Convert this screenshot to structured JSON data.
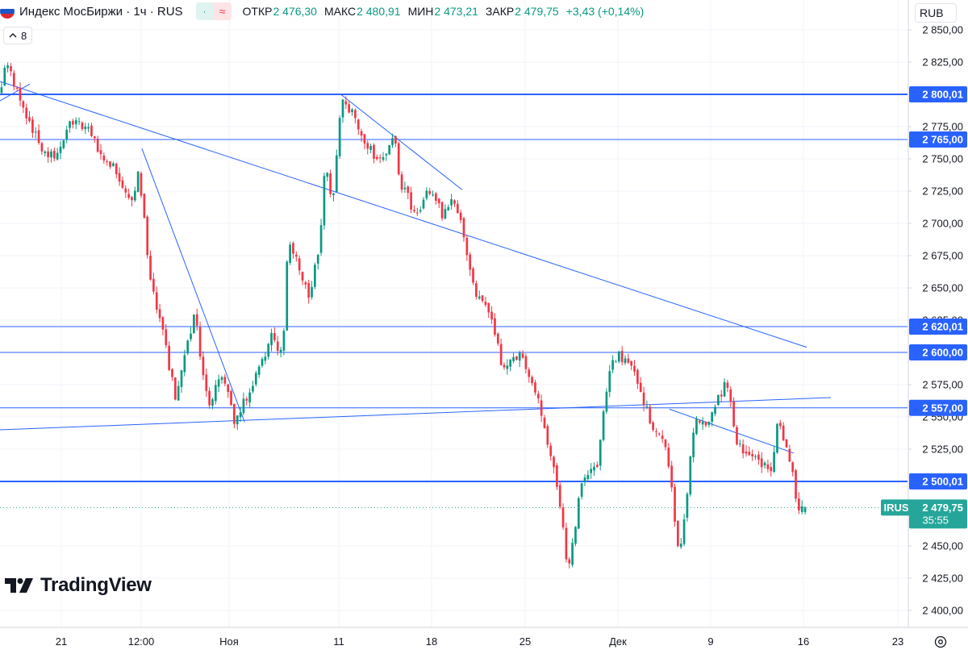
{
  "header": {
    "symbol_title": "Индекс МосБиржи · 1ч · RUS",
    "ohlc": [
      {
        "label": "ОТКР",
        "value": "2 476,30"
      },
      {
        "label": "МАКС",
        "value": "2 480,91"
      },
      {
        "label": "МИН",
        "value": "2 473,21"
      },
      {
        "label": "ЗАКР",
        "value": "2 479,75"
      }
    ],
    "change": "+3,43 (+0,14%)",
    "pill_icon_1": "·",
    "pill_icon_2": "≈"
  },
  "indicators_toggle": "8",
  "currency": "RUB",
  "brand": "TradingView",
  "colors": {
    "up": "#089981",
    "down": "#f23645",
    "level": "#2962ff",
    "trend": "#2962ff",
    "last_price": "#26a69a"
  },
  "chart_data": {
    "type": "candlestick",
    "ylim": [
      2390,
      2855
    ],
    "y_ticks": [
      {
        "v": 2850,
        "t": "2 850,00"
      },
      {
        "v": 2825,
        "t": "2 825,00"
      },
      {
        "v": 2775,
        "t": "2 775,00"
      },
      {
        "v": 2750,
        "t": "2 750,00"
      },
      {
        "v": 2725,
        "t": "2 725,00"
      },
      {
        "v": 2700,
        "t": "2 700,00"
      },
      {
        "v": 2675,
        "t": "2 675,00"
      },
      {
        "v": 2650,
        "t": "2 650,00"
      },
      {
        "v": 2625,
        "t": "2 625,00"
      },
      {
        "v": 2575,
        "t": "2 575,00"
      },
      {
        "v": 2550,
        "t": "2 550,00"
      },
      {
        "v": 2525,
        "t": "2 525,00"
      },
      {
        "v": 2450,
        "t": "2 450,00"
      },
      {
        "v": 2425,
        "t": "2 425,00"
      },
      {
        "v": 2400,
        "t": "2 400,00"
      }
    ],
    "x_labels": [
      "21",
      "12:00",
      "Ноя",
      "11",
      "18",
      "25",
      "Дек",
      "9",
      "16",
      "23"
    ],
    "levels": [
      {
        "value": 2800.01,
        "label": "2 800,01",
        "thick": true
      },
      {
        "value": 2765.0,
        "label": "2 765,00",
        "thick": false
      },
      {
        "value": 2620.01,
        "label": "2 620,01",
        "thick": false
      },
      {
        "value": 2600.0,
        "label": "2 600,00",
        "thick": false
      },
      {
        "value": 2557.0,
        "label": "2 557,00",
        "thick": false
      },
      {
        "value": 2500.01,
        "label": "2 500,01",
        "thick": true
      }
    ],
    "trendlines": [
      {
        "from": [
          0,
          2810
        ],
        "to": [
          86.4,
          2604
        ]
      },
      {
        "from": [
          0,
          2540
        ],
        "to": [
          89.0,
          2565
        ]
      },
      {
        "from": [
          0,
          2795
        ],
        "to": [
          3.2,
          2808
        ]
      },
      {
        "from": [
          15.2,
          2758
        ],
        "to": [
          26.2,
          2546
        ]
      },
      {
        "from": [
          36.5,
          2800
        ],
        "to": [
          49.5,
          2726
        ]
      },
      {
        "from": [
          71.7,
          2556
        ],
        "to": [
          85.0,
          2522
        ]
      }
    ],
    "anchors": [
      [
        0,
        2802
      ],
      [
        1.0,
        2826
      ],
      [
        2.5,
        2790
      ],
      [
        4.5,
        2760
      ],
      [
        6.0,
        2750
      ],
      [
        8.0,
        2780
      ],
      [
        10.0,
        2768
      ],
      [
        11.0,
        2752
      ],
      [
        12.5,
        2742
      ],
      [
        13.5,
        2728
      ],
      [
        14.5,
        2715
      ],
      [
        15.0,
        2745
      ],
      [
        16.2,
        2660
      ],
      [
        17.5,
        2618
      ],
      [
        19.0,
        2562
      ],
      [
        21.0,
        2630
      ],
      [
        22.5,
        2555
      ],
      [
        24.0,
        2585
      ],
      [
        25.2,
        2546
      ],
      [
        26.5,
        2563
      ],
      [
        29.2,
        2612
      ],
      [
        30.5,
        2600
      ],
      [
        31.0,
        2690
      ],
      [
        33.3,
        2640
      ],
      [
        34.5,
        2690
      ],
      [
        35.0,
        2748
      ],
      [
        35.8,
        2718
      ],
      [
        36.8,
        2800
      ],
      [
        38.5,
        2775
      ],
      [
        40.5,
        2750
      ],
      [
        42.5,
        2765
      ],
      [
        43.0,
        2730
      ],
      [
        45.0,
        2705
      ],
      [
        46.0,
        2725
      ],
      [
        47.5,
        2708
      ],
      [
        48.5,
        2720
      ],
      [
        49.5,
        2702
      ],
      [
        51.0,
        2645
      ],
      [
        52.5,
        2632
      ],
      [
        54.0,
        2588
      ],
      [
        56.0,
        2600
      ],
      [
        58.0,
        2558
      ],
      [
        60.0,
        2490
      ],
      [
        61.0,
        2430
      ],
      [
        62.5,
        2502
      ],
      [
        64.0,
        2508
      ],
      [
        65.5,
        2590
      ],
      [
        66.5,
        2597
      ],
      [
        68.0,
        2586
      ],
      [
        70.0,
        2545
      ],
      [
        71.5,
        2526
      ],
      [
        73.0,
        2440
      ],
      [
        74.5,
        2546
      ],
      [
        76.0,
        2545
      ],
      [
        78.0,
        2580
      ],
      [
        79.0,
        2530
      ],
      [
        81.0,
        2520
      ],
      [
        82.8,
        2506
      ],
      [
        83.4,
        2545
      ],
      [
        85.0,
        2515
      ],
      [
        85.6,
        2475
      ],
      [
        86.4,
        2479.75
      ]
    ],
    "last_price": {
      "label": "IRUS",
      "value": 2479.75,
      "value_text": "2 479,75",
      "timer": "35:55"
    }
  }
}
